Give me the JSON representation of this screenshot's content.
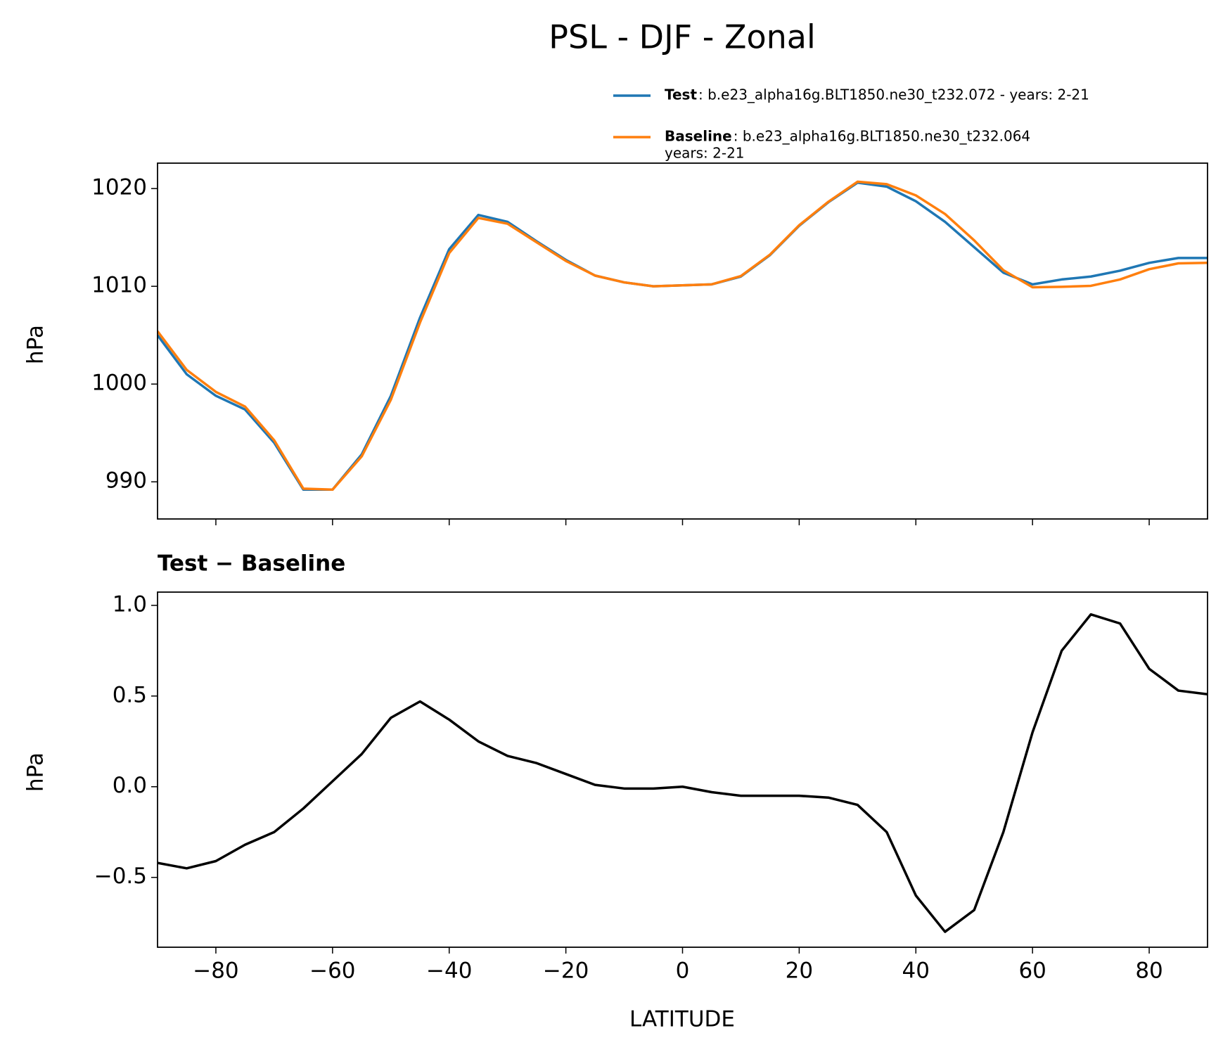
{
  "chart_data": [
    {
      "type": "line",
      "title": "PSL - DJF - Zonal",
      "ylabel": "hPa",
      "x": [
        -90,
        -85,
        -80,
        -75,
        -70,
        -65,
        -60,
        -55,
        -50,
        -45,
        -40,
        -35,
        -30,
        -25,
        -20,
        -15,
        -10,
        -5,
        0,
        5,
        10,
        15,
        20,
        25,
        30,
        35,
        40,
        45,
        50,
        55,
        60,
        65,
        70,
        75,
        80,
        85,
        90
      ],
      "xlim": [
        -90,
        90
      ],
      "ylim": [
        986.2,
        1022.6
      ],
      "yticks": [
        990,
        1000,
        1010,
        1020
      ],
      "legend": "upper right",
      "series": [
        {
          "name": "Test",
          "description": [
            ": b.e23_alpha16g.BLT1850.ne30_t232.072 - years: 2-21"
          ],
          "color": "#1f77b4",
          "values": [
            1005.0,
            1001.0,
            998.8,
            997.4,
            994.0,
            989.2,
            989.2,
            992.8,
            998.8,
            1006.8,
            1013.8,
            1017.3,
            1016.6,
            1014.6,
            1012.7,
            1011.1,
            1010.4,
            1010.0,
            1010.1,
            1010.2,
            1011.0,
            1013.2,
            1016.2,
            1018.6,
            1020.6,
            1020.2,
            1018.7,
            1016.6,
            1014.0,
            1011.4,
            1010.2,
            1010.7,
            1011.0,
            1011.6,
            1012.4,
            1012.9,
            1012.9
          ]
        },
        {
          "name": "Baseline",
          "description": [
            ": b.e23_alpha16g.BLT1850.ne30_t232.064",
            "years: 2-21"
          ],
          "color": "#ff7f0e",
          "values": [
            1005.4,
            1001.45,
            999.2,
            997.7,
            994.25,
            989.3,
            989.2,
            992.6,
            998.4,
            1006.3,
            1013.4,
            1017.0,
            1016.4,
            1014.5,
            1012.6,
            1011.1,
            1010.4,
            1010.0,
            1010.1,
            1010.2,
            1011.05,
            1013.25,
            1016.25,
            1018.65,
            1020.7,
            1020.45,
            1019.3,
            1017.4,
            1014.7,
            1011.65,
            1009.9,
            1009.95,
            1010.05,
            1010.7,
            1011.75,
            1012.35,
            1012.4
          ]
        }
      ]
    },
    {
      "type": "line",
      "title": "Test − Baseline",
      "ylabel": "hPa",
      "xlabel": "LATITUDE",
      "x": [
        -90,
        -85,
        -80,
        -75,
        -70,
        -65,
        -60,
        -55,
        -50,
        -45,
        -40,
        -35,
        -30,
        -25,
        -20,
        -15,
        -10,
        -5,
        0,
        5,
        10,
        15,
        20,
        25,
        30,
        35,
        40,
        45,
        50,
        55,
        60,
        65,
        70,
        75,
        80,
        85,
        90
      ],
      "xlim": [
        -90,
        90
      ],
      "xticks": [
        {
          "value": -80,
          "label": "−80"
        },
        {
          "value": -60,
          "label": "−60"
        },
        {
          "value": -40,
          "label": "−40"
        },
        {
          "value": -20,
          "label": "−20"
        },
        0,
        20,
        40,
        60,
        80
      ],
      "ylim": [
        -0.885,
        1.073
      ],
      "yticks": [
        {
          "value": -0.5,
          "label": "−0.5"
        },
        {
          "value": 0,
          "label": "0.0"
        },
        {
          "value": 0.5,
          "label": "0.5"
        },
        {
          "value": 1,
          "label": "1.0"
        }
      ],
      "series": [
        {
          "color": "#000000",
          "values": [
            -0.42,
            -0.45,
            -0.41,
            -0.32,
            -0.25,
            -0.12,
            0.03,
            0.18,
            0.38,
            0.47,
            0.37,
            0.25,
            0.17,
            0.13,
            0.07,
            0.01,
            -0.01,
            -0.01,
            0.0,
            -0.03,
            -0.05,
            -0.05,
            -0.05,
            -0.06,
            -0.1,
            -0.25,
            -0.6,
            -0.8,
            -0.68,
            -0.25,
            0.3,
            0.75,
            0.95,
            0.9,
            0.65,
            0.53,
            0.51
          ]
        }
      ]
    }
  ]
}
